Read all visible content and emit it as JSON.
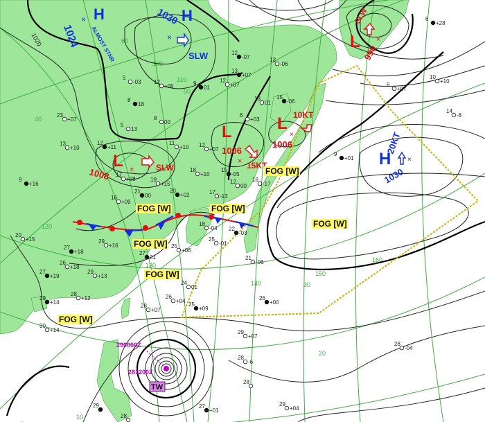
{
  "colors": {
    "land": "#9ee79a",
    "sea": "#ffffff",
    "high": "#1030e0",
    "low": "#e01010",
    "grid": "#3fae3f",
    "fog_label": "#fff860",
    "typhoon": "#c000c0",
    "warning_line": "#c8b400"
  },
  "highs": [
    {
      "symbol": "H",
      "pressure": "1024",
      "motion": "ALMOST STNR"
    },
    {
      "symbol": "H",
      "pressure": "1030",
      "motion": "SLW"
    },
    {
      "symbol": "H",
      "pressure": "1030",
      "motion": "20KT"
    }
  ],
  "lows": [
    {
      "symbol": "L",
      "pressure": "1008",
      "motion": "SLW"
    },
    {
      "symbol": "L",
      "pressure": "1006",
      "motion": "15KT"
    },
    {
      "symbol": "L",
      "pressure": "1006",
      "motion": "10KT"
    },
    {
      "symbol": "L",
      "pressure": "990",
      "motion": "SLW"
    }
  ],
  "fog_labels": [
    "FOG [W]",
    "FOG [W]",
    "FOG [W]",
    "FOG [W]",
    "FOG [W]",
    "FOG [W]",
    "FOG [W]"
  ],
  "typhoon": {
    "label": "TW",
    "times": [
      "290000Z",
      "281200Z"
    ]
  },
  "isobar_labels": [
    "1020"
  ],
  "grid_labels": {
    "latitudes": [
      "60",
      "50",
      "40",
      "30",
      "20",
      "10"
    ],
    "longitudes": [
      "100",
      "110",
      "120",
      "130",
      "140",
      "150",
      "160"
    ]
  },
  "stations": [
    {
      "t": "12",
      "p": "-07"
    },
    {
      "t": "13",
      "p": "-06"
    },
    {
      "t": "12",
      "p": "+07"
    },
    {
      "t": "9",
      "p": "01"
    },
    {
      "t": "12",
      "p": "+05"
    },
    {
      "t": "5",
      "p": "-03"
    },
    {
      "t": "8",
      "p": "18"
    },
    {
      "t": "8",
      "p": "00"
    },
    {
      "t": "5",
      "p": "13"
    },
    {
      "t": "12",
      "p": "+11"
    },
    {
      "t": "11",
      "p": "+10"
    },
    {
      "t": "12",
      "p": "+07"
    },
    {
      "t": "13",
      "p": "+07"
    },
    {
      "t": "23",
      "p": "+07"
    },
    {
      "t": "13",
      "p": "+10"
    },
    {
      "t": "9",
      "p": "+16"
    },
    {
      "t": "17",
      "p": "+08"
    },
    {
      "t": "19",
      "p": "+15"
    },
    {
      "t": "20",
      "p": "+02"
    },
    {
      "t": "18",
      "p": "+10"
    },
    {
      "t": "16",
      "p": "+09"
    },
    {
      "t": "21",
      "p": "00"
    },
    {
      "t": "17",
      "p": "-13"
    },
    {
      "t": "12",
      "p": "00"
    },
    {
      "t": "15",
      "p": "-05"
    },
    {
      "t": "6",
      "p": "+03"
    },
    {
      "t": "13",
      "p": "01"
    },
    {
      "t": "15",
      "p": "-06"
    },
    {
      "t": "16",
      "p": "-17"
    },
    {
      "t": "20",
      "p": "+15"
    },
    {
      "t": "27",
      "p": "+18"
    },
    {
      "t": "29",
      "p": "+16"
    },
    {
      "t": "26",
      "p": "+18"
    },
    {
      "t": "27",
      "p": "+19"
    },
    {
      "t": "29",
      "p": "+13"
    },
    {
      "t": "28",
      "p": "+12"
    },
    {
      "t": "29",
      "p": "+14"
    },
    {
      "t": "30",
      "p": "+14"
    },
    {
      "t": "25",
      "p": "+06"
    },
    {
      "t": "27",
      "p": "01"
    },
    {
      "t": "24",
      "p": "01"
    },
    {
      "t": "26",
      "p": "+04"
    },
    {
      "t": "25",
      "p": "+09"
    },
    {
      "t": "28",
      "p": "+07"
    },
    {
      "t": "18",
      "p": "-04"
    },
    {
      "t": "22",
      "p": "-03"
    },
    {
      "t": "25",
      "p": "-01"
    },
    {
      "t": "21",
      "p": "-06"
    },
    {
      "t": "26",
      "p": "+00"
    },
    {
      "t": "29",
      "p": "+07"
    },
    {
      "t": "28",
      "p": "-6"
    },
    {
      "t": "27",
      "p": "+01"
    },
    {
      "t": "28",
      "p": "-04"
    },
    {
      "t": "29",
      "p": "+04"
    },
    {
      "t": "9",
      "p": "+01"
    },
    {
      "t": "6",
      "p": "+07"
    },
    {
      "t": "10",
      "p": "+10"
    },
    {
      "t": "6",
      "p": "+28"
    },
    {
      "t": "14",
      "p": "-8"
    },
    {
      "t": "28",
      "p": ""
    },
    {
      "t": "29",
      "p": ""
    },
    {
      "t": "28",
      "p": ""
    }
  ]
}
